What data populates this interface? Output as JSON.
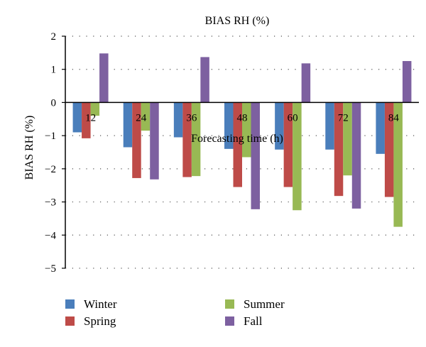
{
  "chart_data": {
    "type": "bar",
    "title": "BIAS RH (%)",
    "xlabel": "Forecasting time (h)",
    "ylabel": "BIAS RH (%)",
    "categories": [
      "12",
      "24",
      "36",
      "48",
      "60",
      "72",
      "84"
    ],
    "ylim": [
      -5,
      2
    ],
    "yticks": [
      2,
      1,
      0,
      -1,
      -2,
      -3,
      -4,
      -5
    ],
    "ytick_labels": [
      "2",
      "1",
      "0",
      "−1",
      "−2",
      "−3",
      "−4",
      "−5"
    ],
    "grid": "horizontal-dotted",
    "legend_position": "bottom",
    "series": [
      {
        "name": "Winter",
        "color": "#4a7ebb",
        "values": [
          -0.9,
          -1.35,
          -1.05,
          -1.4,
          -1.42,
          -1.42,
          -1.55
        ]
      },
      {
        "name": "Spring",
        "color": "#be4b48",
        "values": [
          -1.08,
          -2.28,
          -2.25,
          -2.55,
          -2.55,
          -2.82,
          -2.85
        ]
      },
      {
        "name": "Summer",
        "color": "#98b954",
        "values": [
          -0.4,
          -0.85,
          -2.22,
          -1.65,
          -3.25,
          -2.2,
          -3.75
        ]
      },
      {
        "name": "Fall",
        "color": "#7d60a0",
        "values": [
          1.48,
          -2.32,
          1.37,
          -3.22,
          1.18,
          -3.2,
          1.25
        ]
      }
    ]
  }
}
